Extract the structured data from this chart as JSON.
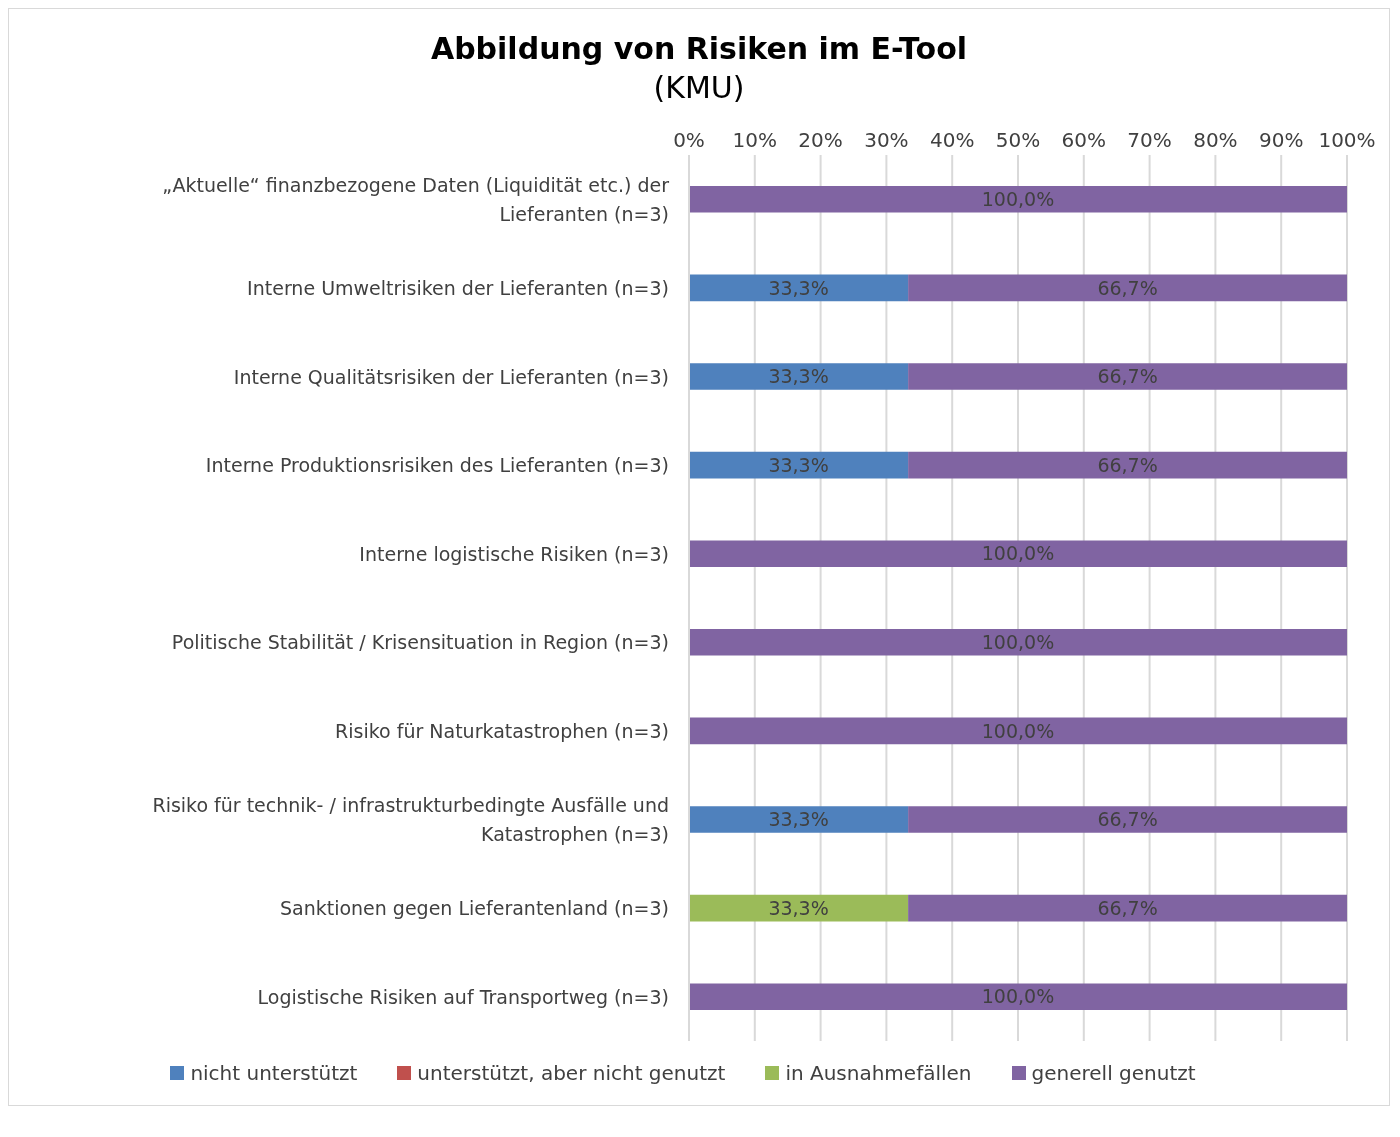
{
  "chart_data": {
    "type": "bar",
    "orientation": "horizontal",
    "stacked": true,
    "title": "Abbildung von Risiken im E-Tool",
    "subtitle": "(KMU)",
    "categories": [
      "„Aktuelle“ finanzbezogene Daten (Liquidität etc.) der Lieferanten (n=3)",
      "Interne Umweltrisiken der Lieferanten (n=3)",
      "Interne Qualitätsrisiken der Lieferanten (n=3)",
      "Interne Produktionsrisiken des Lieferanten (n=3)",
      "Interne logistische Risiken (n=3)",
      "Politische Stabilität / Krisensituation in Region (n=3)",
      "Risiko für Naturkatastrophen (n=3)",
      "Risiko für technik- / infrastrukturbedingte Ausfälle und Katastrophen (n=3)",
      "Sanktionen gegen Lieferantenland (n=3)",
      "Logistische Risiken auf Transportweg (n=3)"
    ],
    "series": [
      {
        "name": "nicht unterstützt",
        "color": "#4f81bd",
        "values": [
          null,
          33.3,
          33.3,
          33.3,
          null,
          null,
          null,
          33.3,
          null,
          null
        ],
        "value_labels": [
          null,
          "33,3%",
          "33,3%",
          "33,3%",
          null,
          null,
          null,
          "33,3%",
          null,
          null
        ]
      },
      {
        "name": "unterstützt, aber nicht genutzt",
        "color": "#c0504d",
        "values": [
          null,
          null,
          null,
          null,
          null,
          null,
          null,
          null,
          null,
          null
        ]
      },
      {
        "name": "in Ausnahmefällen",
        "color": "#9bbb59",
        "values": [
          null,
          null,
          null,
          null,
          null,
          null,
          null,
          null,
          33.3,
          null
        ],
        "value_labels": [
          null,
          null,
          null,
          null,
          null,
          null,
          null,
          null,
          "33,3%",
          null
        ]
      },
      {
        "name": "generell genutzt",
        "color": "#8064a2",
        "values": [
          100,
          66.7,
          66.7,
          66.7,
          100,
          100,
          100,
          66.7,
          66.7,
          100
        ],
        "value_labels": [
          "100,0%",
          "66,7%",
          "66,7%",
          "66,7%",
          "100,0%",
          "100,0%",
          "100,0%",
          "66,7%",
          "66,7%",
          "100,0%"
        ]
      }
    ],
    "xlim": [
      0,
      100
    ],
    "xticks": [
      {
        "value": 0,
        "label": "0%"
      },
      {
        "value": 10,
        "label": "10%"
      },
      {
        "value": 20,
        "label": "20%"
      },
      {
        "value": 30,
        "label": "30%"
      },
      {
        "value": 40,
        "label": "40%"
      },
      {
        "value": 50,
        "label": "50%"
      },
      {
        "value": 60,
        "label": "60%"
      },
      {
        "value": 70,
        "label": "70%"
      },
      {
        "value": 80,
        "label": "80%"
      },
      {
        "value": 90,
        "label": "90%"
      },
      {
        "value": 100,
        "label": "100%"
      }
    ],
    "grid": "x",
    "legend": "bottom"
  }
}
